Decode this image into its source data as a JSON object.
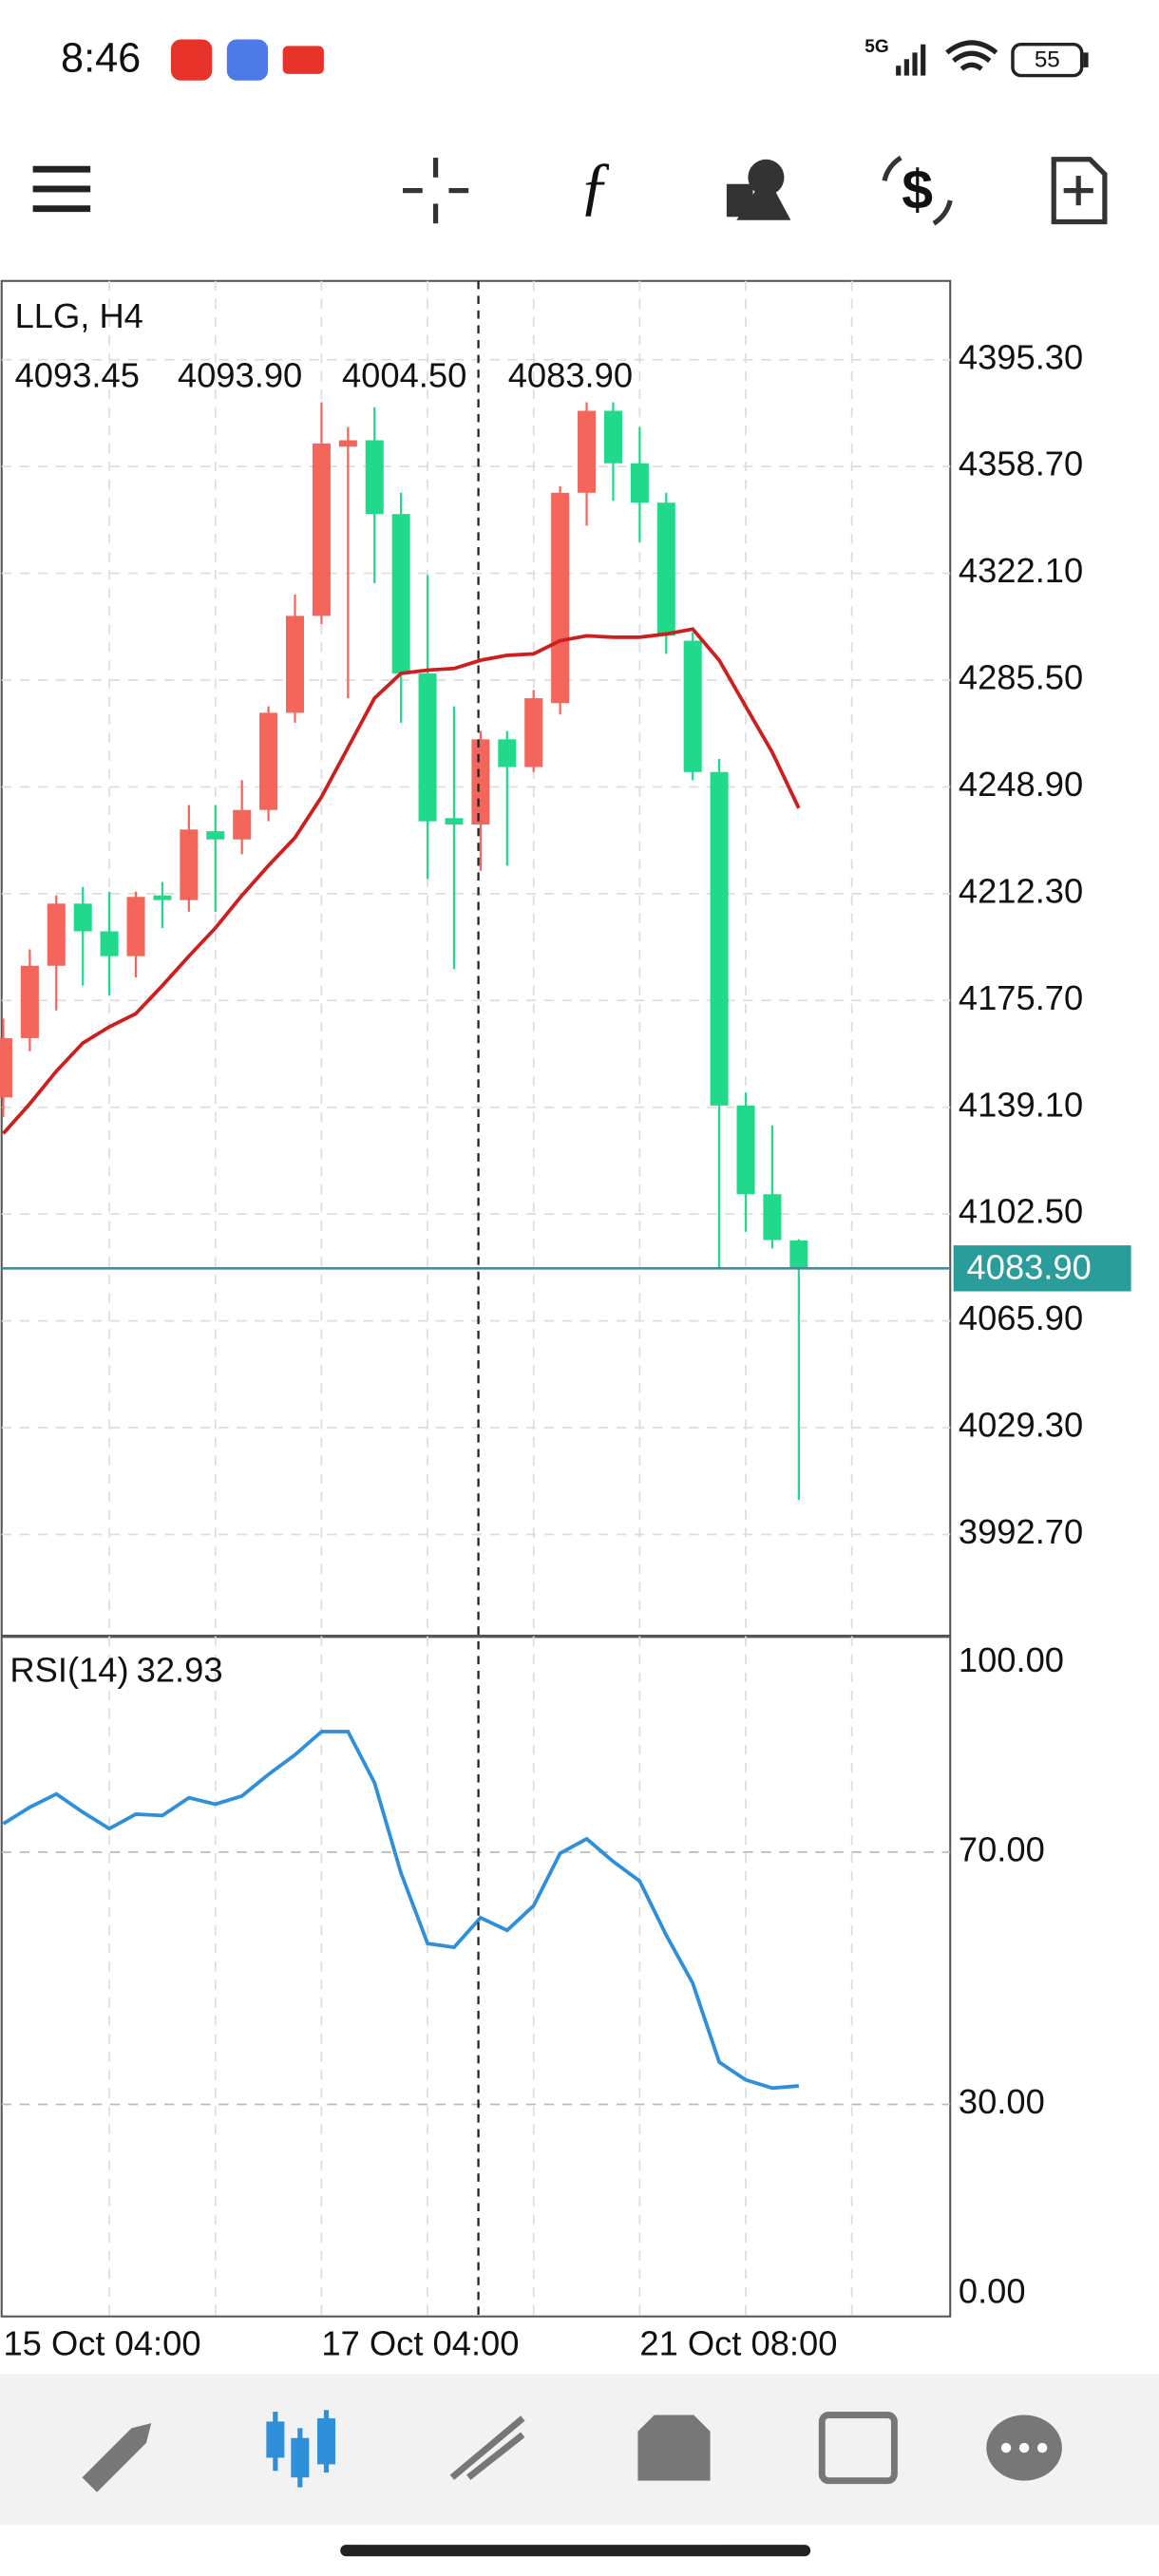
{
  "status": {
    "time": "8:46",
    "network": "5G",
    "battery": "55"
  },
  "chart_data": {
    "type": "candlestick",
    "title": "LLG, H4",
    "categories": [
      "15 Oct 04:00",
      null,
      null,
      null,
      null,
      null,
      null,
      null,
      null,
      null,
      null,
      null,
      "17 Oct 04:00",
      null,
      null,
      null,
      null,
      null,
      null,
      null,
      null,
      null,
      null,
      null,
      "21 Oct 08:00",
      null,
      null,
      null,
      null,
      null,
      null
    ],
    "open": [
      4142.5,
      4162.8,
      4187.6,
      4208.9,
      4199.4,
      4190.9,
      4211.7,
      4210.1,
      4233.7,
      4230.9,
      4241.0,
      4274.3,
      4307.5,
      4365.5,
      4367.7,
      4342.4,
      4287.8,
      4238.2,
      4236.0,
      4265.2,
      4255.7,
      4277.6,
      4349.7,
      4377.8,
      4359.8,
      4346.3,
      4299.0,
      4254.0,
      4139.7,
      4109.3,
      4093.45
    ],
    "high": [
      4169.5,
      4193.2,
      4211.7,
      4214.6,
      4213.0,
      4213.0,
      4216.3,
      4242.7,
      4242.7,
      4251.2,
      4276.5,
      4314.8,
      4380.7,
      4372.2,
      4379.0,
      4349.7,
      4321.5,
      4276.5,
      4268.1,
      4268.1,
      4282.1,
      4351.9,
      4380.7,
      4380.7,
      4372.2,
      4349.7,
      4301.8,
      4258.5,
      4144.2,
      4132.9,
      4093.9
    ],
    "low": [
      4135.8,
      4158.3,
      4172.3,
      4180.8,
      4177.4,
      4183.6,
      4200.5,
      4206.1,
      4206.1,
      4225.8,
      4237.1,
      4270.9,
      4304.7,
      4279.3,
      4318.7,
      4270.9,
      4217.4,
      4186.4,
      4220.2,
      4221.9,
      4254.0,
      4273.7,
      4338.4,
      4346.9,
      4332.8,
      4294.5,
      4251.2,
      4083.9,
      4096.4,
      4090.7,
      4004.5
    ],
    "close": [
      4162.8,
      4187.6,
      4208.9,
      4199.4,
      4190.9,
      4211.2,
      4210.1,
      4234.3,
      4230.9,
      4241.0,
      4274.3,
      4307.5,
      4366.6,
      4367.7,
      4342.4,
      4287.8,
      4237.1,
      4236.0,
      4265.2,
      4255.7,
      4279.3,
      4349.7,
      4377.8,
      4359.8,
      4346.3,
      4300.7,
      4254.0,
      4139.7,
      4109.3,
      4093.6,
      4083.9
    ],
    "last_labels": {
      "open": "4093.45",
      "high": "4093.90",
      "low": "4004.50",
      "close": "4083.90"
    },
    "up_color": "#f4665c",
    "down_color": "#21d98b",
    "ma": {
      "color": "#cc1f1f",
      "values": [
        4130.1,
        4140.3,
        4151.5,
        4161.1,
        4166.7,
        4171.2,
        4180.8,
        4190.9,
        4200.5,
        4211.7,
        4221.9,
        4231.5,
        4245.5,
        4262.4,
        4279.3,
        4287.8,
        4288.9,
        4289.5,
        4292.3,
        4294.0,
        4294.5,
        4299.0,
        4300.7,
        4300.2,
        4300.2,
        4301.3,
        4303.0,
        4292.3,
        4276.5,
        4260.7,
        4241.6
      ]
    },
    "ylim": [
      3957.8,
      4422.3
    ],
    "yticks": [
      {
        "value": 4395.3,
        "label": "4395.30"
      },
      {
        "value": 4358.7,
        "label": "4358.70"
      },
      {
        "value": 4322.1,
        "label": "4322.10"
      },
      {
        "value": 4285.5,
        "label": "4285.50"
      },
      {
        "value": 4248.9,
        "label": "4248.90"
      },
      {
        "value": 4212.3,
        "label": "4212.30"
      },
      {
        "value": 4175.7,
        "label": "4175.70"
      },
      {
        "value": 4139.1,
        "label": "4139.10"
      },
      {
        "value": 4102.5,
        "label": "4102.50"
      },
      {
        "value": 4065.9,
        "label": "4065.90"
      },
      {
        "value": 4029.3,
        "label": "4029.30"
      },
      {
        "value": 3992.7,
        "label": "3992.70"
      }
    ],
    "grid": true,
    "rsi": {
      "name": "RSI(14)",
      "color": "#2f8fd8",
      "values": [
        74.5,
        77.1,
        79.2,
        76.3,
        73.7,
        76.0,
        75.8,
        78.6,
        77.6,
        78.9,
        82.3,
        85.4,
        89.1,
        89.1,
        81.0,
        66.7,
        55.5,
        54.9,
        59.6,
        57.6,
        61.5,
        69.8,
        72.1,
        68.5,
        65.4,
        56.8,
        49.2,
        36.7,
        33.9,
        32.6,
        32.93
      ],
      "ylim": [
        -3.6,
        104.2
      ],
      "yticks": [
        {
          "value": 100,
          "label": "100.00"
        },
        {
          "value": 70,
          "label": "70.00"
        },
        {
          "value": 30,
          "label": "30.00"
        },
        {
          "value": 0,
          "label": "0.00"
        }
      ]
    }
  }
}
